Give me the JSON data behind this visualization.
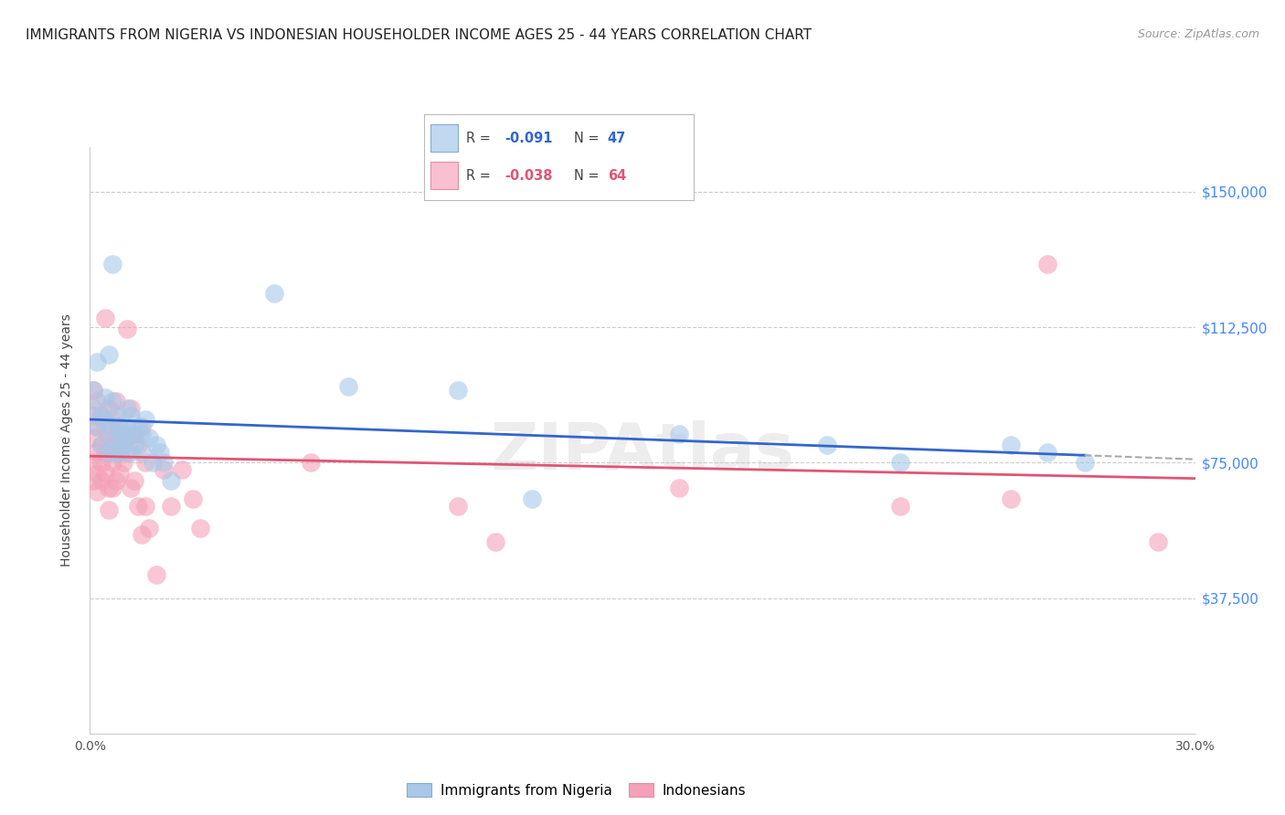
{
  "title": "IMMIGRANTS FROM NIGERIA VS INDONESIAN HOUSEHOLDER INCOME AGES 25 - 44 YEARS CORRELATION CHART",
  "source": "Source: ZipAtlas.com",
  "ylabel": "Householder Income Ages 25 - 44 years",
  "ytick_labels": [
    "$37,500",
    "$75,000",
    "$112,500",
    "$150,000"
  ],
  "ytick_values": [
    37500,
    75000,
    112500,
    150000
  ],
  "ymin": 0,
  "ymax": 162500,
  "xmin": 0.0,
  "xmax": 0.3,
  "nigeria_color": "#a8c8e8",
  "indonesian_color": "#f4a0b8",
  "nigeria_line_color": "#3366cc",
  "indonesian_line_color": "#e05575",
  "nigeria_R": -0.091,
  "nigeria_N": 47,
  "indonesian_R": -0.038,
  "indonesian_N": 64,
  "legend_R1_color": "#cc3333",
  "legend_N1_color": "#3366cc",
  "legend_R2_color": "#cc3333",
  "legend_N2_color": "#cc3333",
  "nigeria_points": [
    [
      0.001,
      90000
    ],
    [
      0.001,
      95000
    ],
    [
      0.002,
      103000
    ],
    [
      0.002,
      85000
    ],
    [
      0.003,
      88000
    ],
    [
      0.003,
      80000
    ],
    [
      0.004,
      93000
    ],
    [
      0.004,
      87000
    ],
    [
      0.005,
      105000
    ],
    [
      0.005,
      78000
    ],
    [
      0.005,
      85000
    ],
    [
      0.006,
      130000
    ],
    [
      0.006,
      92000
    ],
    [
      0.006,
      82000
    ],
    [
      0.007,
      88000
    ],
    [
      0.007,
      78000
    ],
    [
      0.008,
      85000
    ],
    [
      0.008,
      82000
    ],
    [
      0.008,
      78000
    ],
    [
      0.009,
      83000
    ],
    [
      0.009,
      80000
    ],
    [
      0.01,
      90000
    ],
    [
      0.01,
      85000
    ],
    [
      0.011,
      88000
    ],
    [
      0.011,
      78000
    ],
    [
      0.012,
      83000
    ],
    [
      0.012,
      80000
    ],
    [
      0.013,
      85000
    ],
    [
      0.014,
      78000
    ],
    [
      0.014,
      83000
    ],
    [
      0.015,
      87000
    ],
    [
      0.016,
      82000
    ],
    [
      0.017,
      75000
    ],
    [
      0.018,
      80000
    ],
    [
      0.019,
      78000
    ],
    [
      0.02,
      75000
    ],
    [
      0.022,
      70000
    ],
    [
      0.05,
      122000
    ],
    [
      0.07,
      96000
    ],
    [
      0.1,
      95000
    ],
    [
      0.12,
      65000
    ],
    [
      0.16,
      83000
    ],
    [
      0.2,
      80000
    ],
    [
      0.22,
      75000
    ],
    [
      0.25,
      80000
    ],
    [
      0.26,
      78000
    ],
    [
      0.27,
      75000
    ]
  ],
  "indonesian_points": [
    [
      0.001,
      95000
    ],
    [
      0.001,
      88000
    ],
    [
      0.001,
      82000
    ],
    [
      0.001,
      75000
    ],
    [
      0.001,
      70000
    ],
    [
      0.002,
      92000
    ],
    [
      0.002,
      85000
    ],
    [
      0.002,
      78000
    ],
    [
      0.002,
      72000
    ],
    [
      0.002,
      67000
    ],
    [
      0.003,
      88000
    ],
    [
      0.003,
      80000
    ],
    [
      0.003,
      75000
    ],
    [
      0.003,
      70000
    ],
    [
      0.004,
      115000
    ],
    [
      0.004,
      85000
    ],
    [
      0.004,
      78000
    ],
    [
      0.004,
      72000
    ],
    [
      0.005,
      90000
    ],
    [
      0.005,
      82000
    ],
    [
      0.005,
      78000
    ],
    [
      0.005,
      68000
    ],
    [
      0.005,
      62000
    ],
    [
      0.006,
      87000
    ],
    [
      0.006,
      80000
    ],
    [
      0.006,
      75000
    ],
    [
      0.006,
      68000
    ],
    [
      0.007,
      92000
    ],
    [
      0.007,
      83000
    ],
    [
      0.007,
      78000
    ],
    [
      0.007,
      70000
    ],
    [
      0.008,
      85000
    ],
    [
      0.008,
      78000
    ],
    [
      0.008,
      72000
    ],
    [
      0.009,
      80000
    ],
    [
      0.009,
      75000
    ],
    [
      0.01,
      112000
    ],
    [
      0.01,
      82000
    ],
    [
      0.01,
      78000
    ],
    [
      0.011,
      90000
    ],
    [
      0.011,
      68000
    ],
    [
      0.012,
      83000
    ],
    [
      0.012,
      70000
    ],
    [
      0.013,
      80000
    ],
    [
      0.013,
      63000
    ],
    [
      0.014,
      85000
    ],
    [
      0.014,
      55000
    ],
    [
      0.015,
      75000
    ],
    [
      0.015,
      63000
    ],
    [
      0.016,
      57000
    ],
    [
      0.018,
      44000
    ],
    [
      0.02,
      73000
    ],
    [
      0.022,
      63000
    ],
    [
      0.025,
      73000
    ],
    [
      0.028,
      65000
    ],
    [
      0.03,
      57000
    ],
    [
      0.06,
      75000
    ],
    [
      0.1,
      63000
    ],
    [
      0.11,
      53000
    ],
    [
      0.16,
      68000
    ],
    [
      0.22,
      63000
    ],
    [
      0.25,
      65000
    ],
    [
      0.26,
      130000
    ],
    [
      0.29,
      53000
    ]
  ],
  "background_color": "#ffffff",
  "grid_color": "#cccccc",
  "title_fontsize": 11,
  "tick_fontsize": 10
}
